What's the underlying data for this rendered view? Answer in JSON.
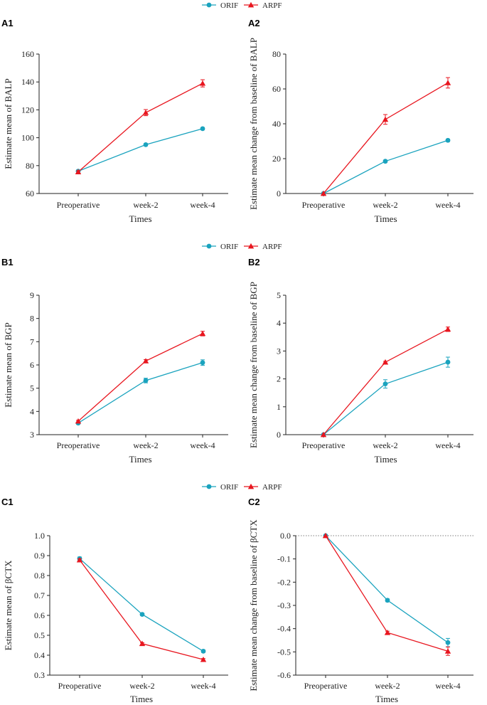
{
  "legend_items": [
    {
      "name": "ORIF",
      "color": "#1AA3BE",
      "marker": "circle"
    },
    {
      "name": "ARPF",
      "color": "#E8161F",
      "marker": "triangle"
    }
  ],
  "chart_data": [
    {
      "id": "A1",
      "panel_label": "A1",
      "type": "line",
      "categories": [
        "Preoperative",
        "week-2",
        "week-4"
      ],
      "xlabel": "Times",
      "ylabel": "Estimate mean of BALP",
      "ylim": [
        60,
        160
      ],
      "yticks": [
        60,
        80,
        100,
        120,
        140,
        160
      ],
      "ytick_labels": [
        "60",
        "80",
        "100",
        "120",
        "140",
        "160"
      ],
      "zero_line": false,
      "series": [
        {
          "name": "ORIF",
          "values": [
            76,
            95,
            106.5
          ],
          "errors": [
            0.8,
            0.8,
            0.8
          ]
        },
        {
          "name": "ARPF",
          "values": [
            75.5,
            118,
            139
          ],
          "errors": [
            0.8,
            2.2,
            2.6
          ]
        }
      ]
    },
    {
      "id": "A2",
      "panel_label": "A2",
      "type": "line",
      "categories": [
        "Preoperative",
        "week-2",
        "week-4"
      ],
      "xlabel": "Times",
      "ylabel": "Estimate mean change from baseline of BALP",
      "ylim": [
        0,
        80
      ],
      "yticks": [
        0,
        20,
        40,
        60,
        80
      ],
      "ytick_labels": [
        "0",
        "20",
        "40",
        "60",
        "80"
      ],
      "zero_line": false,
      "series": [
        {
          "name": "ORIF",
          "values": [
            0,
            18.5,
            30.5
          ],
          "errors": [
            0,
            0.6,
            0.7
          ]
        },
        {
          "name": "ARPF",
          "values": [
            0,
            42.5,
            63.5
          ],
          "errors": [
            0,
            2.8,
            3.0
          ]
        }
      ]
    },
    {
      "id": "B1",
      "panel_label": "B1",
      "type": "line",
      "categories": [
        "Preoperative",
        "week-2",
        "week-4"
      ],
      "xlabel": "Times",
      "ylabel": "Estimate mean of BGP",
      "ylim": [
        3,
        9
      ],
      "yticks": [
        3,
        4,
        5,
        6,
        7,
        8,
        9
      ],
      "ytick_labels": [
        "3",
        "4",
        "5",
        "6",
        "7",
        "8",
        "9"
      ],
      "zero_line": false,
      "series": [
        {
          "name": "ORIF",
          "values": [
            3.5,
            5.33,
            6.1
          ],
          "errors": [
            0.05,
            0.1,
            0.12
          ]
        },
        {
          "name": "ARPF",
          "values": [
            3.58,
            6.17,
            7.35
          ],
          "errors": [
            0.04,
            0.06,
            0.1
          ]
        }
      ]
    },
    {
      "id": "B2",
      "panel_label": "B2",
      "type": "line",
      "categories": [
        "Preoperative",
        "week-2",
        "week-4"
      ],
      "xlabel": "Times",
      "ylabel": "Estimate mean change from baseline of BGP",
      "ylim": [
        0,
        5
      ],
      "yticks": [
        0,
        1,
        2,
        3,
        4,
        5
      ],
      "ytick_labels": [
        "0",
        "1",
        "2",
        "3",
        "4",
        "5"
      ],
      "zero_line": false,
      "series": [
        {
          "name": "ORIF",
          "values": [
            0,
            1.82,
            2.6
          ],
          "errors": [
            0,
            0.15,
            0.18
          ]
        },
        {
          "name": "ARPF",
          "values": [
            0,
            2.6,
            3.78
          ],
          "errors": [
            0,
            0.03,
            0.08
          ]
        }
      ]
    },
    {
      "id": "C1",
      "panel_label": "C1",
      "type": "line",
      "categories": [
        "Preoperative",
        "week-2",
        "week-4"
      ],
      "xlabel": "Times",
      "ylabel": "Estimate mean of βCTX",
      "ylim": [
        0.3,
        1.0
      ],
      "yticks": [
        0.3,
        0.4,
        0.5,
        0.6,
        0.7,
        0.8,
        0.9,
        1.0
      ],
      "ytick_labels": [
        "0.3",
        "0.4",
        "0.5",
        "0.6",
        "0.7",
        "0.8",
        "0.9",
        "1.0"
      ],
      "zero_line": false,
      "series": [
        {
          "name": "ORIF",
          "values": [
            0.885,
            0.605,
            0.42
          ],
          "errors": [
            0.008,
            0.006,
            0.006
          ]
        },
        {
          "name": "ARPF",
          "values": [
            0.878,
            0.458,
            0.378
          ],
          "errors": [
            0.006,
            0.005,
            0.005
          ]
        }
      ]
    },
    {
      "id": "C2",
      "panel_label": "C2",
      "type": "line",
      "categories": [
        "Preoperative",
        "week-2",
        "week-4"
      ],
      "xlabel": "Times",
      "ylabel": "Estimate mean change from baseline of βCTX",
      "ylim": [
        -0.6,
        0.0
      ],
      "yticks": [
        -0.6,
        -0.5,
        -0.4,
        -0.3,
        -0.2,
        -0.1,
        0.0
      ],
      "ytick_labels": [
        "-0.6",
        "-0.5",
        "-0.4",
        "-0.3",
        "-0.2",
        "-0.1",
        "0.0"
      ],
      "zero_line": true,
      "series": [
        {
          "name": "ORIF",
          "values": [
            0,
            -0.278,
            -0.46
          ],
          "errors": [
            0,
            0.006,
            0.018
          ]
        },
        {
          "name": "ARPF",
          "values": [
            0,
            -0.417,
            -0.497
          ],
          "errors": [
            0,
            0.006,
            0.018
          ]
        }
      ]
    }
  ]
}
